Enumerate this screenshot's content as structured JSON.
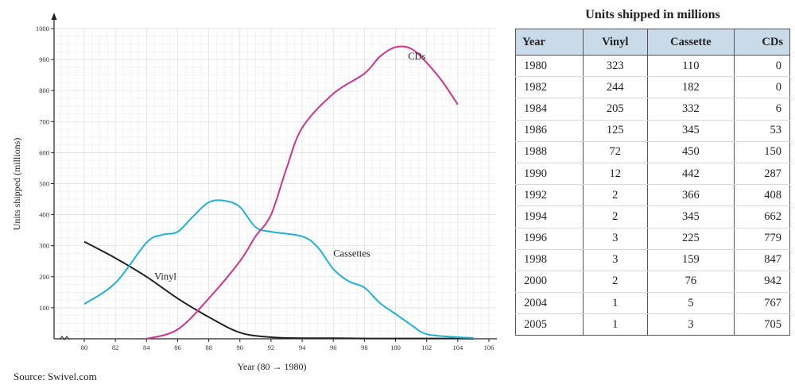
{
  "chart_data": {
    "type": "line",
    "xlabel": "Year (80 → 1980)",
    "ylabel": "Units shipped (millions)",
    "xlim": [
      77,
      106
    ],
    "ylim": [
      0,
      1000
    ],
    "x_ticks": [
      80,
      82,
      84,
      86,
      88,
      90,
      92,
      94,
      96,
      98,
      100,
      102,
      104,
      106
    ],
    "y_ticks": [
      100,
      200,
      300,
      400,
      500,
      600,
      700,
      800,
      900,
      1000
    ],
    "grid": true,
    "series": [
      {
        "name": "Vinyl",
        "color": "#222222",
        "x": [
          80,
          82,
          84,
          86,
          88,
          90,
          92,
          94,
          96,
          98,
          100,
          104,
          105
        ],
        "y": [
          313,
          260,
          200,
          130,
          70,
          20,
          5,
          2,
          2,
          1,
          1,
          1,
          0
        ]
      },
      {
        "name": "Cassettes",
        "color": "#1fb0d8",
        "x": [
          80,
          82,
          84,
          85,
          86,
          87,
          88,
          89,
          90,
          91,
          92,
          94,
          95,
          96,
          97,
          98,
          99,
          100,
          101,
          102,
          104,
          105
        ],
        "y": [
          112,
          180,
          310,
          335,
          345,
          395,
          440,
          445,
          425,
          360,
          345,
          330,
          295,
          225,
          185,
          165,
          115,
          80,
          45,
          15,
          5,
          3
        ]
      },
      {
        "name": "CDs",
        "color": "#d0338d",
        "x": [
          84,
          86,
          88,
          90,
          91,
          92,
          93,
          94,
          96,
          98,
          99,
          100,
          101,
          102,
          103,
          104
        ],
        "y": [
          0,
          30,
          130,
          250,
          330,
          400,
          550,
          680,
          790,
          855,
          910,
          940,
          935,
          890,
          830,
          755
        ]
      }
    ],
    "annotations": [
      {
        "text": "CDs",
        "x": 100.8,
        "y": 900
      },
      {
        "text": "Vinyl",
        "x": 84.5,
        "y": 190
      },
      {
        "text": "Cassettes",
        "x": 96,
        "y": 265
      }
    ]
  },
  "table": {
    "title": "Units shipped in millions",
    "columns": [
      "Year",
      "Vinyl",
      "Cassette",
      "CDs"
    ],
    "rows": [
      [
        "1980",
        "323",
        "110",
        "0"
      ],
      [
        "1982",
        "244",
        "182",
        "0"
      ],
      [
        "1984",
        "205",
        "332",
        "6"
      ],
      [
        "1986",
        "125",
        "345",
        "53"
      ],
      [
        "1988",
        "72",
        "450",
        "150"
      ],
      [
        "1990",
        "12",
        "442",
        "287"
      ],
      [
        "1992",
        "2",
        "366",
        "408"
      ],
      [
        "1994",
        "2",
        "345",
        "662"
      ],
      [
        "1996",
        "3",
        "225",
        "779"
      ],
      [
        "1998",
        "3",
        "159",
        "847"
      ],
      [
        "2000",
        "2",
        "76",
        "942"
      ],
      [
        "2004",
        "1",
        "5",
        "767"
      ],
      [
        "2005",
        "1",
        "3",
        "705"
      ]
    ]
  },
  "source": "Source: Swivel.com"
}
